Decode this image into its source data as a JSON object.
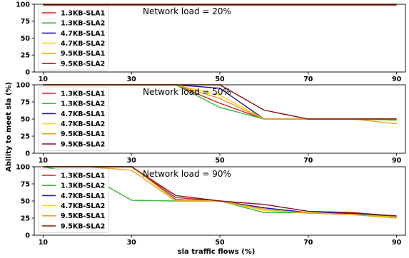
{
  "figure": {
    "ylabel": "Ability to meet sla (%)",
    "xlabel": "sla traffic flows (%)"
  },
  "chart_data": [
    {
      "type": "line",
      "annotation": "Network load = 20%",
      "x": [
        10,
        20,
        30,
        40,
        50,
        60,
        70,
        80,
        90
      ],
      "xticks": [
        10,
        30,
        50,
        70,
        90
      ],
      "yticks": [
        0,
        25,
        50,
        75,
        100
      ],
      "xlim": [
        8,
        92
      ],
      "ylim": [
        0,
        100
      ],
      "legend": "top-left",
      "series": [
        {
          "name": "1.3KB-SLA1",
          "color": "#d62020",
          "values": [
            100,
            100,
            100,
            100,
            100,
            100,
            100,
            100,
            100
          ]
        },
        {
          "name": "1.3KB-SLA2",
          "color": "#3cb83c",
          "values": [
            100,
            100,
            100,
            100,
            100,
            100,
            100,
            100,
            100
          ]
        },
        {
          "name": "4.7KB-SLA1",
          "color": "#1c1cb4",
          "values": [
            100,
            100,
            100,
            100,
            100,
            100,
            100,
            100,
            100
          ]
        },
        {
          "name": "4.7KB-SLA2",
          "color": "#f2d61e",
          "values": [
            100,
            100,
            100,
            100,
            100,
            100,
            100,
            100,
            100
          ]
        },
        {
          "name": "9.5KB-SLA1",
          "color": "#f0a020",
          "values": [
            100,
            100,
            100,
            100,
            100,
            100,
            100,
            100,
            100
          ]
        },
        {
          "name": "9.5KB-SLA2",
          "color": "#8b1010",
          "values": [
            99,
            99,
            99,
            99,
            99,
            99,
            99,
            99,
            99
          ]
        }
      ]
    },
    {
      "type": "line",
      "annotation": "Network load = 50%",
      "x": [
        10,
        20,
        30,
        40,
        50,
        60,
        70,
        80,
        90
      ],
      "xticks": [
        10,
        30,
        50,
        70,
        90
      ],
      "yticks": [
        0,
        25,
        50,
        75,
        100
      ],
      "xlim": [
        8,
        92
      ],
      "ylim": [
        0,
        100
      ],
      "legend": "top-left",
      "series": [
        {
          "name": "1.3KB-SLA1",
          "color": "#d62020",
          "values": [
            100,
            100,
            100,
            100,
            73,
            50,
            50,
            50,
            50
          ]
        },
        {
          "name": "1.3KB-SLA2",
          "color": "#3cb83c",
          "values": [
            100,
            100,
            100,
            100,
            67,
            50,
            50,
            50,
            48
          ]
        },
        {
          "name": "4.7KB-SLA1",
          "color": "#1c1cb4",
          "values": [
            100,
            100,
            100,
            100,
            95,
            50,
            50,
            50,
            50
          ]
        },
        {
          "name": "4.7KB-SLA2",
          "color": "#f2d61e",
          "values": [
            100,
            100,
            100,
            100,
            85,
            50,
            50,
            50,
            49
          ]
        },
        {
          "name": "9.5KB-SLA1",
          "color": "#f0a020",
          "values": [
            100,
            100,
            100,
            100,
            80,
            50,
            50,
            50,
            43
          ]
        },
        {
          "name": "9.5KB-SLA2",
          "color": "#8b1010",
          "values": [
            100,
            100,
            100,
            100,
            100,
            63,
            50,
            50,
            50
          ]
        }
      ]
    },
    {
      "type": "line",
      "annotation": "Network load = 90%",
      "x": [
        10,
        20,
        30,
        40,
        50,
        60,
        70,
        80,
        90
      ],
      "xticks": [
        10,
        30,
        50,
        70,
        90
      ],
      "yticks": [
        0,
        25,
        50,
        75,
        100
      ],
      "xlim": [
        8,
        92
      ],
      "ylim": [
        0,
        100
      ],
      "legend": "top-left",
      "series": [
        {
          "name": "1.3KB-SLA1",
          "color": "#d62020",
          "values": [
            100,
            100,
            100,
            55,
            50,
            40,
            33,
            32,
            28
          ]
        },
        {
          "name": "1.3KB-SLA2",
          "color": "#3cb83c",
          "values": [
            100,
            88,
            51,
            50,
            50,
            33,
            33,
            32,
            26
          ]
        },
        {
          "name": "4.7KB-SLA1",
          "color": "#1c1cb4",
          "values": [
            100,
            100,
            100,
            52,
            50,
            40,
            33,
            32,
            28
          ]
        },
        {
          "name": "4.7KB-SLA2",
          "color": "#f2d61e",
          "values": [
            100,
            100,
            100,
            51,
            50,
            36,
            33,
            30,
            26
          ]
        },
        {
          "name": "9.5KB-SLA1",
          "color": "#f0a020",
          "values": [
            100,
            100,
            95,
            50,
            50,
            38,
            32,
            30,
            25
          ]
        },
        {
          "name": "9.5KB-SLA2",
          "color": "#8b1010",
          "values": [
            100,
            100,
            100,
            58,
            50,
            45,
            35,
            33,
            28
          ]
        }
      ]
    }
  ]
}
